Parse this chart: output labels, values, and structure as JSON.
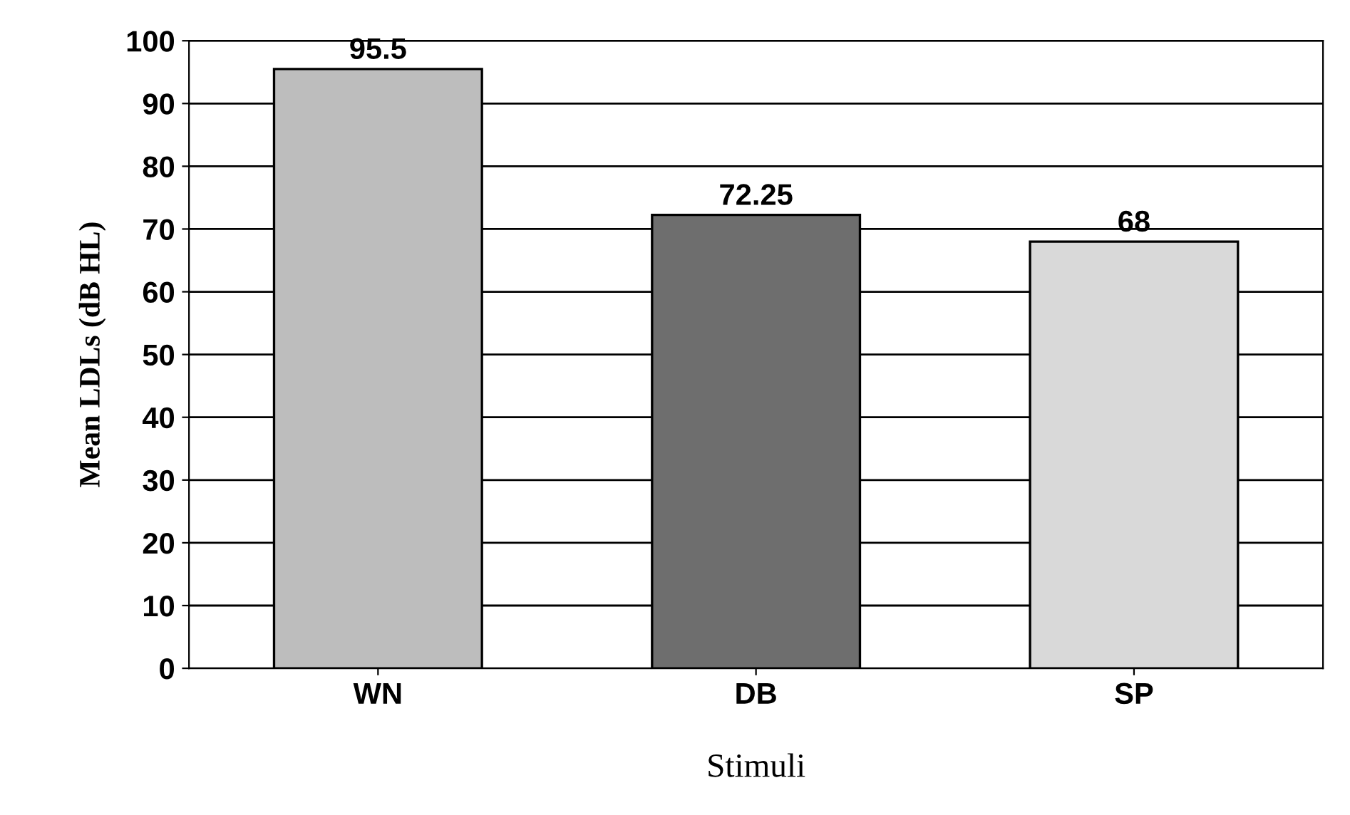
{
  "chart_data": {
    "type": "bar",
    "xlabel": "Stimuli",
    "ylabel": "Mean LDLs (dB HL)",
    "categories": [
      "WN",
      "DB",
      "SP"
    ],
    "values": [
      95.5,
      72.25,
      68
    ],
    "colors": [
      "#bdbdbd",
      "#6e6e6e",
      "#d9d9d9"
    ],
    "ylim": [
      0,
      100
    ],
    "yticks": [
      0,
      10,
      20,
      30,
      40,
      50,
      60,
      70,
      80,
      90,
      100
    ],
    "grid": "y",
    "data_labels": true
  }
}
